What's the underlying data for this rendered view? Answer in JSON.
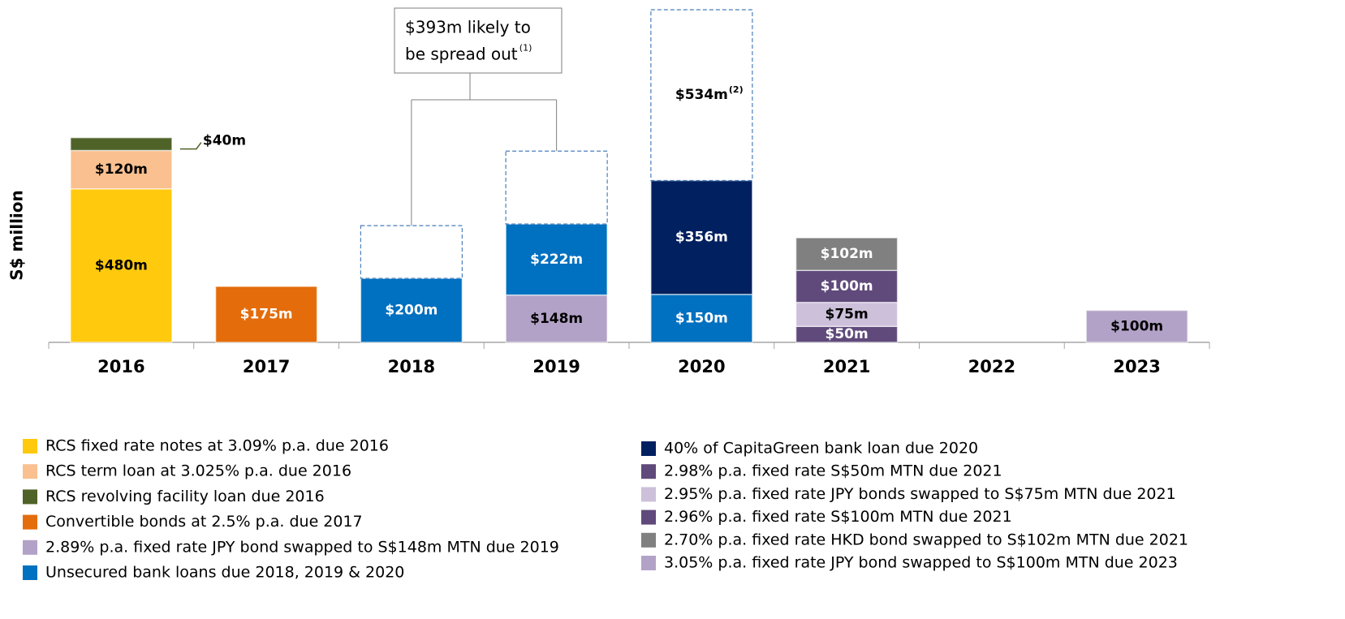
{
  "chart_data": {
    "type": "stacked_bar",
    "y_label": "S$ million",
    "categories": [
      "2016",
      "2017",
      "2018",
      "2019",
      "2020",
      "2021",
      "2022",
      "2023"
    ],
    "series": [
      {
        "name": "RCS fixed rate notes at 3.09% p.a. due 2016",
        "color": "#ffc90e",
        "values": [
          480,
          null,
          null,
          null,
          null,
          null,
          null,
          null
        ],
        "value_labels": [
          "$480m",
          null,
          null,
          null,
          null,
          null,
          null,
          null
        ]
      },
      {
        "name": "RCS term loan at 3.025% p.a. due 2016",
        "color": "#fac090",
        "values": [
          120,
          null,
          null,
          null,
          null,
          null,
          null,
          null
        ],
        "value_labels": [
          "$120m",
          null,
          null,
          null,
          null,
          null,
          null,
          null
        ]
      },
      {
        "name": "RCS revolving facility loan due 2016",
        "color": "#4f6228",
        "values": [
          40,
          null,
          null,
          null,
          null,
          null,
          null,
          null
        ],
        "value_labels": [
          "$40m",
          null,
          null,
          null,
          null,
          null,
          null,
          null
        ]
      },
      {
        "name": "Convertible bonds at 2.5% p.a. due 2017",
        "color": "#e46c0a",
        "values": [
          null,
          175,
          null,
          null,
          null,
          null,
          null,
          null
        ],
        "value_labels": [
          null,
          "$175m",
          null,
          null,
          null,
          null,
          null,
          null
        ]
      },
      {
        "name": "2.89% p.a. fixed rate JPY bond swapped to S$148m MTN due 2019",
        "color": "#b3a2c7",
        "values": [
          null,
          null,
          null,
          148,
          null,
          null,
          null,
          null
        ],
        "value_labels": [
          null,
          null,
          null,
          "$148m",
          null,
          null,
          null,
          null
        ]
      },
      {
        "name": "Unsecured bank loans due 2018, 2019 & 2020",
        "color": "#0070c0",
        "values": [
          null,
          null,
          200,
          222,
          150,
          null,
          null,
          null
        ],
        "value_labels": [
          null,
          null,
          "$200m",
          "$222m",
          "$150m",
          null,
          null,
          null
        ]
      },
      {
        "name": "40% of CapitaGreen bank loan due 2020",
        "color": "#002060",
        "values": [
          null,
          null,
          null,
          null,
          356,
          null,
          null,
          null
        ],
        "value_labels": [
          null,
          null,
          null,
          null,
          "$356m",
          null,
          null,
          null
        ]
      },
      {
        "name": "2.98% p.a. fixed rate S$50m MTN due 2021",
        "color": "#604a7b",
        "values": [
          null,
          null,
          null,
          null,
          null,
          50,
          null,
          null
        ],
        "value_labels": [
          null,
          null,
          null,
          null,
          null,
          "$50m",
          null,
          null
        ]
      },
      {
        "name": "2.95% p.a. fixed rate JPY bonds swapped to S$75m MTN due 2021",
        "color": "#ccc0da",
        "values": [
          null,
          null,
          null,
          null,
          null,
          75,
          null,
          null
        ],
        "value_labels": [
          null,
          null,
          null,
          null,
          null,
          "$75m",
          null,
          null
        ]
      },
      {
        "name": "2.96% p.a. fixed rate S$100m MTN due 2021",
        "color": "#604a7b",
        "values": [
          null,
          null,
          null,
          null,
          null,
          100,
          null,
          null
        ],
        "value_labels": [
          null,
          null,
          null,
          null,
          null,
          "$100m",
          null,
          null
        ]
      },
      {
        "name": "2.70% p.a. fixed rate HKD bond swapped to S$102m MTN due 2021",
        "color": "#808080",
        "values": [
          null,
          null,
          null,
          null,
          null,
          102,
          null,
          null
        ],
        "value_labels": [
          null,
          null,
          null,
          null,
          null,
          "$102m",
          null,
          null
        ]
      },
      {
        "name": "3.05% p.a. fixed rate JPY bond swapped to S$100m MTN due 2023",
        "color": "#b3a2c7",
        "values": [
          null,
          null,
          null,
          null,
          null,
          null,
          null,
          100
        ],
        "value_labels": [
          null,
          null,
          null,
          null,
          null,
          null,
          null,
          "$100m"
        ]
      },
      {
        "style": "dashed",
        "color": "#4a7ebb",
        "values": [
          null,
          null,
          165,
          228,
          534,
          null,
          null,
          null
        ],
        "value_labels": [
          null,
          null,
          null,
          null,
          "$534m",
          null,
          null,
          null
        ],
        "value_label_notes": [
          null,
          null,
          null,
          null,
          "(2)",
          null,
          null,
          null
        ]
      }
    ],
    "annotation": {
      "text": [
        "$393m likely to",
        "be spread out"
      ],
      "note": "(1)"
    }
  }
}
